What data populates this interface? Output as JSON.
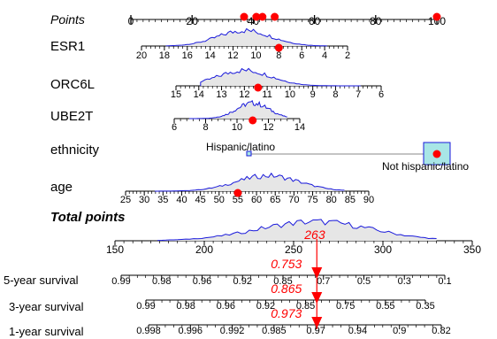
{
  "chart_data": {
    "type": "nomogram",
    "rows": [
      {
        "label": "Points",
        "italic": true,
        "ticks": [
          {
            "value": 0,
            "label": "0"
          },
          {
            "value": 20,
            "label": "20"
          },
          {
            "value": 40,
            "label": "40"
          },
          {
            "value": 60,
            "label": "60"
          },
          {
            "value": 80,
            "label": "80"
          },
          {
            "value": 100,
            "label": "100"
          }
        ],
        "markers_points": [
          37,
          41,
          43,
          47,
          100
        ]
      },
      {
        "label": "ESR1",
        "ticks": [
          {
            "value": 20,
            "label": "20"
          },
          {
            "value": 18,
            "label": "18"
          },
          {
            "value": 16,
            "label": "16"
          },
          {
            "value": 14,
            "label": "14"
          },
          {
            "value": 12,
            "label": "12"
          },
          {
            "value": 10,
            "label": "10"
          },
          {
            "value": 8,
            "label": "8"
          },
          {
            "value": 6,
            "label": "6"
          },
          {
            "value": 4,
            "label": "4"
          },
          {
            "value": 2,
            "label": "2"
          }
        ],
        "marker": 8,
        "density_mode": 11
      },
      {
        "label": "ORC6L",
        "ticks": [
          {
            "value": 15,
            "label": "15"
          },
          {
            "value": 14,
            "label": "14"
          },
          {
            "value": 13,
            "label": "13"
          },
          {
            "value": 12,
            "label": "12"
          },
          {
            "value": 11,
            "label": "11"
          },
          {
            "value": 10,
            "label": "10"
          },
          {
            "value": 9,
            "label": "9"
          },
          {
            "value": 8,
            "label": "8"
          },
          {
            "value": 7,
            "label": "7"
          },
          {
            "value": 6,
            "label": "6"
          }
        ],
        "marker": 11.4,
        "density_mode": 12
      },
      {
        "label": "UBE2T",
        "ticks": [
          {
            "value": 6,
            "label": "6"
          },
          {
            "value": 8,
            "label": "8"
          },
          {
            "value": 10,
            "label": "10"
          },
          {
            "value": 12,
            "label": "12"
          },
          {
            "value": 14,
            "label": "14"
          }
        ],
        "marker": 11,
        "density_mode": 11
      },
      {
        "label": "ethnicity",
        "categories": [
          "Hispanic/latino",
          "Not hispanic/latino"
        ],
        "selected": "Not hispanic/latino"
      },
      {
        "label": "age",
        "ticks": [
          {
            "value": 25,
            "label": "25"
          },
          {
            "value": 30,
            "label": "30"
          },
          {
            "value": 35,
            "label": "35"
          },
          {
            "value": 40,
            "label": "40"
          },
          {
            "value": 45,
            "label": "45"
          },
          {
            "value": 50,
            "label": "50"
          },
          {
            "value": 55,
            "label": "55"
          },
          {
            "value": 60,
            "label": "60"
          },
          {
            "value": 65,
            "label": "65"
          },
          {
            "value": 70,
            "label": "70"
          },
          {
            "value": 75,
            "label": "75"
          },
          {
            "value": 80,
            "label": "80"
          },
          {
            "value": 85,
            "label": "85"
          },
          {
            "value": 90,
            "label": "90"
          }
        ],
        "marker": 55,
        "density_mode": 63
      },
      {
        "label": "Total points",
        "bold_italic": true,
        "ticks": [
          {
            "value": 150,
            "label": "150"
          },
          {
            "value": 200,
            "label": "200"
          },
          {
            "value": 250,
            "label": "250"
          },
          {
            "value": 300,
            "label": "300"
          },
          {
            "value": 350,
            "label": "350"
          }
        ],
        "predicted_total": 263,
        "predicted_label": "263",
        "density_mode": 262
      },
      {
        "label": "5-year survival",
        "ticks": [
          {
            "value": 0.99,
            "label": "0.99"
          },
          {
            "value": 0.98,
            "label": "0.98"
          },
          {
            "value": 0.96,
            "label": "0.96"
          },
          {
            "value": 0.92,
            "label": "0.92"
          },
          {
            "value": 0.85,
            "label": "0.85"
          },
          {
            "value": 0.7,
            "label": "0.7"
          },
          {
            "value": 0.5,
            "label": "0.5"
          },
          {
            "value": 0.3,
            "label": "0.3"
          },
          {
            "value": 0.1,
            "label": "0.1"
          }
        ],
        "predicted_label": "0.753"
      },
      {
        "label": "3-year survival",
        "ticks": [
          {
            "value": 0.99,
            "label": "0.99"
          },
          {
            "value": 0.98,
            "label": "0.98"
          },
          {
            "value": 0.96,
            "label": "0.96"
          },
          {
            "value": 0.92,
            "label": "0.92"
          },
          {
            "value": 0.85,
            "label": "0.85"
          },
          {
            "value": 0.75,
            "label": "0.75"
          },
          {
            "value": 0.55,
            "label": "0.55"
          },
          {
            "value": 0.35,
            "label": "0.35"
          }
        ],
        "predicted_label": "0.865"
      },
      {
        "label": "1-year survival",
        "ticks": [
          {
            "value": 0.998,
            "label": "0.998"
          },
          {
            "value": 0.996,
            "label": "0.996"
          },
          {
            "value": 0.992,
            "label": "0.992"
          },
          {
            "value": 0.985,
            "label": "0.985"
          },
          {
            "value": 0.97,
            "label": "0.97"
          },
          {
            "value": 0.94,
            "label": "0.94"
          },
          {
            "value": 0.9,
            "label": "0.9"
          },
          {
            "value": 0.82,
            "label": "0.82"
          }
        ],
        "predicted_label": "0.973"
      }
    ],
    "colors": {
      "marker": "#ff0000",
      "density_line": "#1a1adb",
      "density_fill": "#e6e6e6",
      "category_fill": "#a8e6e6",
      "category_stroke": "#1a1adb"
    }
  }
}
